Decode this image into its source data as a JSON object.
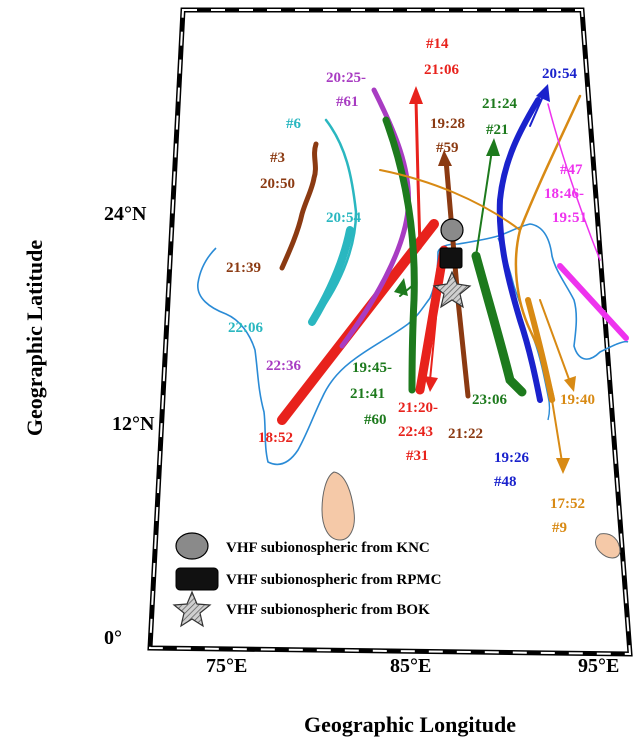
{
  "axes": {
    "ylabel": "Geographic Latitude",
    "xlabel": "Geographic Longitude",
    "lat_ticks": [
      {
        "value": 0,
        "label": "0°"
      },
      {
        "value": 12,
        "label": "12°N"
      },
      {
        "value": 24,
        "label": "24°N"
      }
    ],
    "lon_ticks": [
      {
        "value": 75,
        "label": "75°E"
      },
      {
        "value": 85,
        "label": "85°E"
      },
      {
        "value": 95,
        "label": "95°E"
      }
    ]
  },
  "colors": {
    "red": "#e8221c",
    "green": "#1d7a1d",
    "brown": "#8b3a12",
    "cyan": "#2ab7c0",
    "magenta": "#a83cc2",
    "pink": "#ee33ee",
    "blue": "#1a22cc",
    "orange": "#d88a14",
    "coast": "#2a8bd6",
    "srilanka": "#f5c9a8"
  },
  "events": {
    "e14": [
      "#14",
      "21:06"
    ],
    "e25": [
      "20:25-",
      "#61"
    ],
    "e6": [
      "#6"
    ],
    "e3": [
      "#3",
      "20:50"
    ],
    "e59": [
      "19:28",
      "#59"
    ],
    "e21": [
      "21:24",
      "#21"
    ],
    "e54b": [
      "20:54"
    ],
    "e47": [
      "#47",
      "18:46-",
      "19:51"
    ],
    "e54c": [
      "20:54"
    ],
    "e39": [
      "21:39"
    ],
    "e06": [
      "22:06"
    ],
    "e36": [
      "22:36"
    ],
    "e60": [
      "19:45-",
      "21:41",
      "#60"
    ],
    "e31": [
      "21:20-",
      "22:43",
      "#31"
    ],
    "e22": [
      "21:22"
    ],
    "e306": [
      "23:06"
    ],
    "e40": [
      "19:40"
    ],
    "e48": [
      "19:26",
      "#48"
    ],
    "e9": [
      "17:52",
      "#9"
    ],
    "e52": [
      "18:52"
    ]
  },
  "legend": {
    "knc": "VHF subionospheric from KNC",
    "rpmc": "VHF subionospheric from RPMC",
    "bok": "VHF subionospheric from BOK"
  }
}
